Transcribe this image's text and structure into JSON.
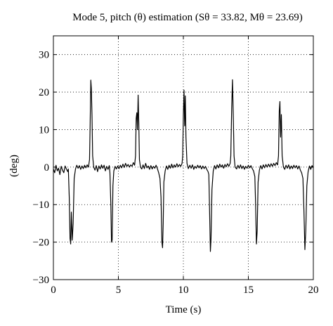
{
  "chart_data": {
    "type": "line",
    "title": "Mode 5, pitch (θ) estimation (Sθ = 33.82, Mθ = 23.69)",
    "xlabel": "Time (s)",
    "ylabel": "(deg)",
    "xlim": [
      0,
      20
    ],
    "ylim": [
      -30,
      35
    ],
    "x_ticks": [
      0,
      5,
      10,
      15,
      20
    ],
    "y_ticks": [
      -30,
      -20,
      -10,
      0,
      10,
      20,
      30
    ],
    "grid": "dotted",
    "series": [
      {
        "color": "#000000",
        "points": [
          [
            0.0,
            -0.5
          ],
          [
            0.1,
            -1.5
          ],
          [
            0.2,
            0.5
          ],
          [
            0.3,
            -1.0
          ],
          [
            0.4,
            -0.3
          ],
          [
            0.5,
            -2.0
          ],
          [
            0.6,
            0.2
          ],
          [
            0.7,
            -0.8
          ],
          [
            0.8,
            -1.5
          ],
          [
            0.9,
            0.3
          ],
          [
            1.0,
            -0.5
          ],
          [
            1.1,
            -1.2
          ],
          [
            1.15,
            -0.5
          ],
          [
            1.22,
            -8.0
          ],
          [
            1.28,
            -19.0
          ],
          [
            1.33,
            -20.5
          ],
          [
            1.38,
            -12.0
          ],
          [
            1.45,
            -19.5
          ],
          [
            1.52,
            -15.0
          ],
          [
            1.6,
            -3.0
          ],
          [
            1.7,
            -0.5
          ],
          [
            1.8,
            0.5
          ],
          [
            1.9,
            -0.3
          ],
          [
            2.0,
            0.4
          ],
          [
            2.1,
            -0.6
          ],
          [
            2.2,
            0.3
          ],
          [
            2.3,
            -0.4
          ],
          [
            2.4,
            0.5
          ],
          [
            2.5,
            -0.2
          ],
          [
            2.6,
            0.6
          ],
          [
            2.7,
            0.0
          ],
          [
            2.78,
            2.0
          ],
          [
            2.83,
            12.0
          ],
          [
            2.88,
            23.2
          ],
          [
            2.92,
            21.0
          ],
          [
            2.97,
            14.0
          ],
          [
            3.02,
            3.0
          ],
          [
            3.1,
            0.0
          ],
          [
            3.2,
            -0.8
          ],
          [
            3.3,
            0.4
          ],
          [
            3.4,
            -1.2
          ],
          [
            3.5,
            0.3
          ],
          [
            3.6,
            -0.5
          ],
          [
            3.7,
            0.6
          ],
          [
            3.8,
            -0.3
          ],
          [
            3.9,
            0.5
          ],
          [
            4.0,
            -1.0
          ],
          [
            4.1,
            0.2
          ],
          [
            4.2,
            -0.6
          ],
          [
            4.3,
            0.4
          ],
          [
            4.35,
            -1.5
          ],
          [
            4.42,
            -10.0
          ],
          [
            4.47,
            -20.0
          ],
          [
            4.52,
            -19.5
          ],
          [
            4.58,
            -5.0
          ],
          [
            4.65,
            -1.0
          ],
          [
            4.75,
            0.2
          ],
          [
            4.85,
            -0.5
          ],
          [
            4.95,
            0.3
          ],
          [
            5.05,
            -0.4
          ],
          [
            5.15,
            0.5
          ],
          [
            5.25,
            -0.2
          ],
          [
            5.35,
            0.8
          ],
          [
            5.45,
            -0.1
          ],
          [
            5.55,
            1.0
          ],
          [
            5.65,
            0.2
          ],
          [
            5.75,
            0.7
          ],
          [
            5.85,
            0.0
          ],
          [
            5.95,
            0.6
          ],
          [
            6.05,
            0.2
          ],
          [
            6.15,
            1.2
          ],
          [
            6.25,
            0.5
          ],
          [
            6.32,
            3.0
          ],
          [
            6.37,
            13.0
          ],
          [
            6.42,
            14.5
          ],
          [
            6.47,
            10.0
          ],
          [
            6.52,
            19.2
          ],
          [
            6.57,
            12.0
          ],
          [
            6.62,
            2.0
          ],
          [
            6.7,
            0.0
          ],
          [
            6.8,
            -0.5
          ],
          [
            6.9,
            0.6
          ],
          [
            7.0,
            -0.4
          ],
          [
            7.1,
            1.0
          ],
          [
            7.2,
            -0.2
          ],
          [
            7.3,
            0.3
          ],
          [
            7.4,
            -0.6
          ],
          [
            7.5,
            0.4
          ],
          [
            7.6,
            -0.5
          ],
          [
            7.7,
            0.2
          ],
          [
            7.8,
            -0.3
          ],
          [
            7.9,
            0.5
          ],
          [
            8.0,
            -0.4
          ],
          [
            8.1,
            -1.5
          ],
          [
            8.2,
            -3.0
          ],
          [
            8.28,
            -8.0
          ],
          [
            8.35,
            -20.0
          ],
          [
            8.4,
            -21.5
          ],
          [
            8.45,
            -15.0
          ],
          [
            8.5,
            -4.0
          ],
          [
            8.6,
            -1.0
          ],
          [
            8.7,
            0.3
          ],
          [
            8.8,
            -0.6
          ],
          [
            8.9,
            0.5
          ],
          [
            9.0,
            -0.3
          ],
          [
            9.1,
            0.8
          ],
          [
            9.2,
            -0.2
          ],
          [
            9.3,
            0.6
          ],
          [
            9.4,
            0.0
          ],
          [
            9.5,
            0.9
          ],
          [
            9.6,
            0.1
          ],
          [
            9.7,
            0.7
          ],
          [
            9.8,
            0.2
          ],
          [
            9.9,
            1.0
          ],
          [
            9.95,
            3.0
          ],
          [
            10.0,
            14.0
          ],
          [
            10.05,
            20.5
          ],
          [
            10.1,
            11.0
          ],
          [
            10.15,
            19.0
          ],
          [
            10.2,
            8.0
          ],
          [
            10.28,
            1.0
          ],
          [
            10.38,
            -0.4
          ],
          [
            10.5,
            0.5
          ],
          [
            10.6,
            -0.3
          ],
          [
            10.7,
            0.6
          ],
          [
            10.8,
            -0.6
          ],
          [
            10.9,
            0.2
          ],
          [
            11.0,
            -0.3
          ],
          [
            11.1,
            0.5
          ],
          [
            11.2,
            -0.2
          ],
          [
            11.3,
            0.4
          ],
          [
            11.4,
            -0.5
          ],
          [
            11.5,
            0.3
          ],
          [
            11.6,
            -0.4
          ],
          [
            11.7,
            0.2
          ],
          [
            11.8,
            -0.6
          ],
          [
            11.9,
            -1.2
          ],
          [
            11.96,
            -2.0
          ],
          [
            12.02,
            -12.0
          ],
          [
            12.08,
            -22.5
          ],
          [
            12.13,
            -19.0
          ],
          [
            12.2,
            -6.0
          ],
          [
            12.3,
            -1.0
          ],
          [
            12.4,
            0.4
          ],
          [
            12.5,
            -0.5
          ],
          [
            12.6,
            0.6
          ],
          [
            12.7,
            -0.2
          ],
          [
            12.8,
            0.8
          ],
          [
            12.9,
            0.0
          ],
          [
            13.0,
            0.6
          ],
          [
            13.1,
            -0.3
          ],
          [
            13.2,
            0.7
          ],
          [
            13.3,
            0.1
          ],
          [
            13.4,
            0.9
          ],
          [
            13.5,
            0.2
          ],
          [
            13.6,
            1.0
          ],
          [
            13.65,
            3.0
          ],
          [
            13.72,
            16.0
          ],
          [
            13.78,
            23.3
          ],
          [
            13.84,
            14.0
          ],
          [
            13.9,
            3.0
          ],
          [
            13.98,
            0.0
          ],
          [
            14.1,
            -0.5
          ],
          [
            14.2,
            0.5
          ],
          [
            14.3,
            -0.3
          ],
          [
            14.4,
            0.6
          ],
          [
            14.5,
            -0.4
          ],
          [
            14.6,
            0.3
          ],
          [
            14.7,
            -0.6
          ],
          [
            14.8,
            0.2
          ],
          [
            14.9,
            -0.3
          ],
          [
            15.0,
            0.5
          ],
          [
            15.1,
            -0.2
          ],
          [
            15.2,
            0.4
          ],
          [
            15.3,
            -0.4
          ],
          [
            15.4,
            -1.0
          ],
          [
            15.5,
            -2.5
          ],
          [
            15.56,
            -10.0
          ],
          [
            15.62,
            -20.5
          ],
          [
            15.68,
            -17.0
          ],
          [
            15.75,
            -4.0
          ],
          [
            15.85,
            -0.8
          ],
          [
            15.95,
            0.4
          ],
          [
            16.05,
            -0.5
          ],
          [
            16.15,
            0.6
          ],
          [
            16.25,
            -0.2
          ],
          [
            16.35,
            0.7
          ],
          [
            16.45,
            0.0
          ],
          [
            16.55,
            0.8
          ],
          [
            16.65,
            0.1
          ],
          [
            16.75,
            0.9
          ],
          [
            16.85,
            0.2
          ],
          [
            16.95,
            1.0
          ],
          [
            17.05,
            0.4
          ],
          [
            17.15,
            1.2
          ],
          [
            17.25,
            0.6
          ],
          [
            17.32,
            3.0
          ],
          [
            17.38,
            15.0
          ],
          [
            17.43,
            17.5
          ],
          [
            17.48,
            8.0
          ],
          [
            17.54,
            14.0
          ],
          [
            17.6,
            3.0
          ],
          [
            17.7,
            0.0
          ],
          [
            17.8,
            -0.6
          ],
          [
            17.9,
            0.5
          ],
          [
            18.0,
            -0.3
          ],
          [
            18.1,
            0.6
          ],
          [
            18.2,
            -0.5
          ],
          [
            18.3,
            0.3
          ],
          [
            18.4,
            -0.4
          ],
          [
            18.5,
            0.5
          ],
          [
            18.6,
            -0.2
          ],
          [
            18.7,
            0.4
          ],
          [
            18.8,
            -0.5
          ],
          [
            18.9,
            0.3
          ],
          [
            19.0,
            -0.8
          ],
          [
            19.1,
            -1.5
          ],
          [
            19.2,
            -3.0
          ],
          [
            19.28,
            -12.0
          ],
          [
            19.35,
            -22.0
          ],
          [
            19.42,
            -17.0
          ],
          [
            19.5,
            -5.0
          ],
          [
            19.6,
            -1.2
          ],
          [
            19.7,
            0.3
          ],
          [
            19.8,
            -0.6
          ],
          [
            19.9,
            0.4
          ],
          [
            20.0,
            -0.2
          ]
        ]
      }
    ]
  }
}
